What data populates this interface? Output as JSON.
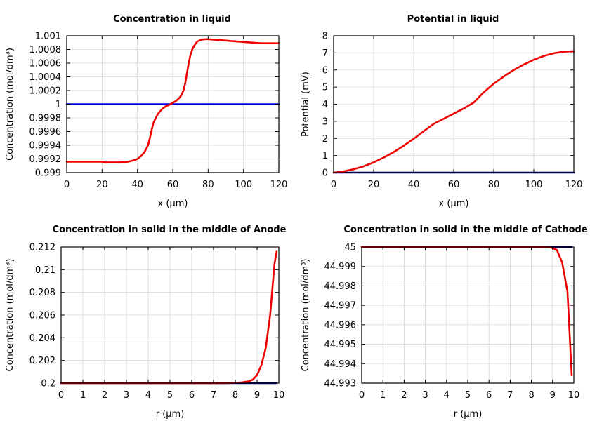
{
  "chart_data": [
    {
      "type": "line",
      "title": "Concentration in liquid",
      "xlabel": "x (µm)",
      "ylabel": "Concentration (mol/dm³)",
      "xlim": [
        0,
        120
      ],
      "ylim": [
        0.999,
        1.001
      ],
      "xticks": [
        0,
        20,
        40,
        60,
        80,
        100,
        120
      ],
      "xtick_labels": [
        "0",
        "20",
        "40",
        "60",
        "80",
        "100",
        "120"
      ],
      "yticks": [
        0.999,
        0.9992,
        0.9994,
        0.9996,
        0.9998,
        1.0,
        1.0002,
        1.0004,
        1.0006,
        1.0008,
        1.001
      ],
      "ytick_labels": [
        "0.999",
        "0.9992",
        "0.9994",
        "0.9996",
        "0.9998",
        "1",
        "1.0002",
        "1.0004",
        "1.0006",
        "1.0008",
        "1.001"
      ],
      "grid": true,
      "series": [
        {
          "color": "#0000ee",
          "x": [
            0,
            120
          ],
          "y": [
            1.0,
            1.0
          ]
        },
        {
          "color": "#ee0000",
          "x": [
            0,
            10,
            20,
            22,
            25,
            30,
            35,
            38,
            40,
            42,
            44,
            46,
            47,
            48,
            49,
            50,
            51,
            52,
            54,
            56,
            58,
            60,
            62,
            64,
            65,
            66,
            67,
            68,
            69,
            70,
            71,
            72,
            73,
            74,
            76,
            78,
            80,
            85,
            90,
            95,
            100,
            105,
            110,
            120
          ],
          "y": [
            0.99916,
            0.99916,
            0.99916,
            0.99915,
            0.99915,
            0.99915,
            0.99916,
            0.99918,
            0.9992,
            0.99924,
            0.9993,
            0.9994,
            0.9995,
            0.99962,
            0.99972,
            0.99978,
            0.99983,
            0.99987,
            0.99993,
            0.99997,
            0.99999,
            1.00002,
            1.00005,
            1.0001,
            1.00014,
            1.0002,
            1.0003,
            1.00045,
            1.0006,
            1.00072,
            1.0008,
            1.00085,
            1.00089,
            1.00092,
            1.00094,
            1.00095,
            1.00095,
            1.00094,
            1.00093,
            1.00092,
            1.00091,
            1.0009,
            1.00089,
            1.00089
          ]
        }
      ]
    },
    {
      "type": "line",
      "title": "Potential in liquid",
      "xlabel": "x (µm)",
      "ylabel": "Potential (mV)",
      "xlim": [
        0,
        120
      ],
      "ylim": [
        0,
        8
      ],
      "xticks": [
        0,
        20,
        40,
        60,
        80,
        100,
        120
      ],
      "xtick_labels": [
        "0",
        "20",
        "40",
        "60",
        "80",
        "100",
        "120"
      ],
      "yticks": [
        0,
        1,
        2,
        3,
        4,
        5,
        6,
        7,
        8
      ],
      "ytick_labels": [
        "0",
        "1",
        "2",
        "3",
        "4",
        "5",
        "6",
        "7",
        "8"
      ],
      "grid": true,
      "series": [
        {
          "color": "#00008b",
          "x": [
            0,
            120
          ],
          "y": [
            0,
            0
          ]
        },
        {
          "color": "#ee0000",
          "x": [
            0,
            5,
            10,
            15,
            20,
            25,
            30,
            35,
            40,
            45,
            50,
            55,
            60,
            65,
            70,
            75,
            80,
            85,
            90,
            95,
            100,
            105,
            110,
            115,
            120
          ],
          "y": [
            0,
            0.07,
            0.2,
            0.37,
            0.6,
            0.88,
            1.2,
            1.57,
            1.98,
            2.42,
            2.85,
            3.15,
            3.45,
            3.75,
            4.1,
            4.7,
            5.2,
            5.62,
            6.0,
            6.32,
            6.6,
            6.82,
            6.98,
            7.07,
            7.1
          ]
        }
      ]
    },
    {
      "type": "line",
      "title": "Concentration in solid in the middle of Anode",
      "xlabel": "r (µm)",
      "ylabel": "Concentration (mol/dm³)",
      "xlim": [
        0,
        10
      ],
      "ylim": [
        0.2,
        0.212
      ],
      "xticks": [
        0,
        1,
        2,
        3,
        4,
        5,
        6,
        7,
        8,
        9,
        10
      ],
      "xtick_labels": [
        "0",
        "1",
        "2",
        "3",
        "4",
        "5",
        "6",
        "7",
        "8",
        "9",
        "10"
      ],
      "yticks": [
        0.2,
        0.202,
        0.204,
        0.206,
        0.208,
        0.21,
        0.212
      ],
      "ytick_labels": [
        "0.2",
        "0.202",
        "0.204",
        "0.206",
        "0.208",
        "0.21",
        "0.212"
      ],
      "grid": true,
      "series": [
        {
          "color": "#00008b",
          "x": [
            0,
            9.9
          ],
          "y": [
            0.2,
            0.2
          ]
        },
        {
          "color": "#ee0000",
          "x": [
            0,
            7,
            7.5,
            8,
            8.3,
            8.6,
            8.8,
            9.0,
            9.2,
            9.4,
            9.6,
            9.8,
            9.9
          ],
          "y": [
            0.2,
            0.2,
            0.20001,
            0.20003,
            0.20007,
            0.20015,
            0.2003,
            0.2007,
            0.2016,
            0.2031,
            0.206,
            0.2105,
            0.2116
          ]
        }
      ]
    },
    {
      "type": "line",
      "title": "Concentration in solid in the middle of Cathode",
      "xlabel": "r (µm)",
      "ylabel": "Concentration (mol/dm³)",
      "xlim": [
        0,
        10
      ],
      "ylim": [
        44.993,
        45.0
      ],
      "xticks": [
        0,
        1,
        2,
        3,
        4,
        5,
        6,
        7,
        8,
        9,
        10
      ],
      "xtick_labels": [
        "0",
        "1",
        "2",
        "3",
        "4",
        "5",
        "6",
        "7",
        "8",
        "9",
        "10"
      ],
      "yticks": [
        44.993,
        44.994,
        44.995,
        44.996,
        44.997,
        44.998,
        44.999,
        45.0
      ],
      "ytick_labels": [
        "44.993",
        "44.994",
        "44.995",
        "44.996",
        "44.997",
        "44.998",
        "44.999",
        "45"
      ],
      "grid": true,
      "series": [
        {
          "color": "#00008b",
          "x": [
            0,
            9.9
          ],
          "y": [
            45.0,
            45.0
          ]
        },
        {
          "color": "#ee0000",
          "x": [
            0,
            8.5,
            8.9,
            9.2,
            9.45,
            9.7,
            9.9
          ],
          "y": [
            45.0,
            45.0,
            44.99998,
            44.99985,
            44.9992,
            44.9977,
            44.9934
          ]
        }
      ]
    }
  ]
}
